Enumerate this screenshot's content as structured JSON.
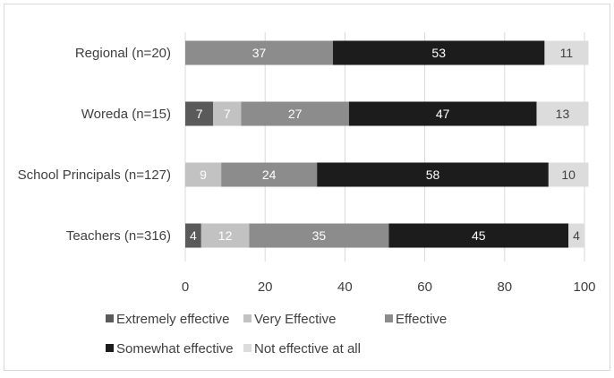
{
  "chart_data": {
    "type": "bar",
    "orientation": "horizontal",
    "stacked": true,
    "title": "",
    "xlabel": "",
    "ylabel": "",
    "xlim": [
      0,
      100
    ],
    "x_ticks": [
      "0",
      "20",
      "40",
      "60",
      "80",
      "100"
    ],
    "grid": "vertical gridlines",
    "legend_position": "bottom",
    "categories": [
      "Regional (n=20)",
      "Woreda (n=15)",
      "School Principals (n=127)",
      "Teachers (n=316)"
    ],
    "series": [
      {
        "name": "Extremely effective",
        "color": "#5a5a5a",
        "label_color": "#ffffff",
        "values": [
          0,
          7,
          0,
          4
        ]
      },
      {
        "name": "Very Effective",
        "color": "#c2c2c2",
        "label_color": "#ffffff",
        "values": [
          0,
          7,
          9,
          12
        ]
      },
      {
        "name": "Effective",
        "color": "#8c8c8c",
        "label_color": "#ffffff",
        "values": [
          37,
          27,
          24,
          35
        ]
      },
      {
        "name": "Somewhat effective",
        "color": "#1c1c1c",
        "label_color": "#ffffff",
        "values": [
          53,
          47,
          58,
          45
        ]
      },
      {
        "name": "Not effective at all",
        "color": "#dcdcdc",
        "label_color": "#404040",
        "values": [
          11,
          13,
          10,
          4
        ]
      }
    ]
  }
}
